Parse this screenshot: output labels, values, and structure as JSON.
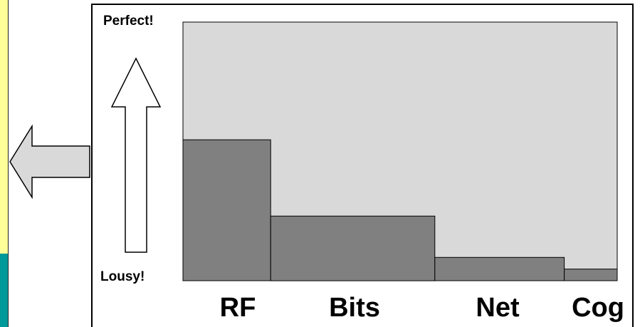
{
  "colors": {
    "plot_background": "#d9d9d9",
    "bar_fill": "#808080",
    "side_strip_yellow": "#ffff99",
    "side_strip_teal": "#009999",
    "arrow_left_fill": "#d9d9d9",
    "arrow_up_fill": "#ffffff"
  },
  "icons": {
    "left_arrow": "left-arrow-icon",
    "up_arrow": "up-arrow-icon"
  },
  "axis_labels": {
    "top": "Perfect!",
    "bottom": "Lousy!"
  },
  "chart_data": {
    "type": "bar",
    "title": "",
    "xlabel": "",
    "ylabel": "",
    "ylim": [
      0,
      100
    ],
    "grid": false,
    "legend": "none",
    "categories": [
      "RF",
      "Bits",
      "Net",
      "Cog"
    ],
    "values": [
      54.5,
      25,
      9,
      4.5
    ],
    "widths": [
      20.2,
      37.8,
      29.8,
      12.2
    ]
  }
}
